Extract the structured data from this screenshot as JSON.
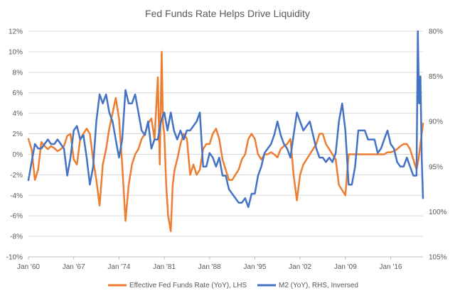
{
  "chart_data": {
    "type": "line",
    "title": "Fed Funds Rate Helps Drive Liquidity",
    "legend_position": "bottom",
    "grid": "horizontal",
    "x_ticks": [
      "Jan '60",
      "Jan '67",
      "Jan '74",
      "Jan '81",
      "Jan '88",
      "Jan '95",
      "Jan '02",
      "Jan '09",
      "Jan '16"
    ],
    "x_range": [
      1960,
      2021
    ],
    "y_left": {
      "range": [
        -10,
        12
      ],
      "ticks": [
        -10,
        -8,
        -6,
        -4,
        -2,
        0,
        2,
        4,
        6,
        8,
        10,
        12
      ],
      "tick_labels": [
        "-10%",
        "-8%",
        "-6%",
        "-4%",
        "-2%",
        "0%",
        "2%",
        "4%",
        "6%",
        "8%",
        "10%",
        "12%"
      ]
    },
    "y_right": {
      "range": [
        80,
        105
      ],
      "reversed": true,
      "ticks": [
        80,
        85,
        90,
        95,
        100,
        105
      ],
      "tick_labels": [
        "80%",
        "85%",
        "90%",
        "95%",
        "100%",
        "105%"
      ]
    },
    "series": [
      {
        "name": "Effective Fed Funds Rate (YoY), LHS",
        "color": "#ED7D31",
        "axis": "left",
        "x": [
          1960.0,
          1960.5,
          1961.0,
          1961.5,
          1962.0,
          1962.5,
          1963.0,
          1963.5,
          1964.0,
          1964.5,
          1965.0,
          1965.5,
          1966.0,
          1966.5,
          1967.0,
          1967.5,
          1968.0,
          1968.5,
          1969.0,
          1969.5,
          1970.0,
          1970.5,
          1971.0,
          1971.5,
          1972.0,
          1972.5,
          1973.0,
          1973.5,
          1974.0,
          1974.5,
          1975.0,
          1975.5,
          1976.0,
          1976.5,
          1977.0,
          1977.5,
          1978.0,
          1978.5,
          1979.0,
          1979.5,
          1980.0,
          1980.3,
          1980.6,
          1980.8,
          1981.0,
          1981.3,
          1981.6,
          1982.0,
          1982.3,
          1982.6,
          1983.0,
          1983.5,
          1984.0,
          1984.5,
          1985.0,
          1985.5,
          1986.0,
          1986.5,
          1987.0,
          1987.5,
          1988.0,
          1988.5,
          1989.0,
          1989.5,
          1990.0,
          1990.5,
          1991.0,
          1991.5,
          1992.0,
          1992.5,
          1993.0,
          1993.5,
          1994.0,
          1994.5,
          1995.0,
          1995.5,
          1996.0,
          1996.5,
          1997.0,
          1997.5,
          1998.0,
          1998.5,
          1999.0,
          1999.5,
          2000.0,
          2000.5,
          2001.0,
          2001.5,
          2002.0,
          2002.5,
          2003.0,
          2003.5,
          2004.0,
          2004.5,
          2005.0,
          2005.5,
          2006.0,
          2006.5,
          2007.0,
          2007.5,
          2008.0,
          2008.5,
          2009.0,
          2009.5,
          2010.0,
          2010.5,
          2011.0,
          2011.5,
          2012.0,
          2012.5,
          2013.0,
          2013.5,
          2014.0,
          2014.5,
          2015.0,
          2015.5,
          2016.0,
          2016.5,
          2017.0,
          2017.5,
          2018.0,
          2018.5,
          2019.0,
          2019.5,
          2020.0,
          2020.3,
          2020.6,
          2021.0
        ],
        "y": [
          1.5,
          0.5,
          -2.5,
          -1.5,
          1.2,
          0.8,
          0.5,
          0.8,
          0.6,
          0.3,
          0.5,
          0.8,
          1.8,
          2.0,
          -0.5,
          -1.0,
          1.5,
          2.0,
          2.5,
          2.0,
          -0.5,
          -2.5,
          -5.0,
          -1.0,
          0.5,
          2.5,
          4.0,
          5.5,
          3.5,
          -1.0,
          -6.5,
          -3.0,
          -1.0,
          0.0,
          0.5,
          1.5,
          2.0,
          3.0,
          3.5,
          1.5,
          7.5,
          -1.0,
          10.0,
          3.0,
          2.0,
          -3.0,
          -6.0,
          -7.5,
          -3.0,
          -1.5,
          -0.5,
          1.0,
          2.0,
          1.5,
          -2.0,
          -1.0,
          -2.0,
          -1.5,
          0.5,
          1.0,
          1.0,
          2.0,
          2.5,
          1.5,
          -0.5,
          -1.5,
          -2.5,
          -2.5,
          -2.0,
          -1.5,
          -0.5,
          0.0,
          1.5,
          2.0,
          1.5,
          0.0,
          -0.5,
          0.0,
          0.0,
          0.2,
          0.0,
          -0.3,
          0.5,
          0.8,
          1.0,
          1.5,
          -2.0,
          -4.5,
          -2.0,
          -1.0,
          -0.5,
          0.0,
          0.5,
          1.0,
          2.0,
          2.0,
          1.0,
          0.5,
          0.0,
          -0.5,
          -3.0,
          -3.5,
          -4.0,
          0.0,
          0.0,
          0.0,
          0.0,
          0.0,
          0.0,
          0.0,
          0.0,
          0.0,
          0.0,
          0.0,
          0.0,
          0.2,
          0.2,
          0.3,
          0.5,
          0.8,
          1.0,
          1.0,
          0.5,
          -0.5,
          -1.5,
          -0.5,
          1.0,
          3.0
        ]
      },
      {
        "name": "M2 (YoY), RHS, Inversed",
        "color": "#4472C4",
        "axis": "right",
        "x": [
          1960.0,
          1960.5,
          1961.0,
          1961.5,
          1962.0,
          1962.5,
          1963.0,
          1963.5,
          1964.0,
          1964.5,
          1965.0,
          1965.5,
          1966.0,
          1966.5,
          1967.0,
          1967.5,
          1968.0,
          1968.5,
          1969.0,
          1969.5,
          1970.0,
          1970.5,
          1971.0,
          1971.5,
          1972.0,
          1972.5,
          1973.0,
          1973.5,
          1974.0,
          1974.5,
          1975.0,
          1975.5,
          1976.0,
          1976.5,
          1977.0,
          1977.5,
          1978.0,
          1978.5,
          1979.0,
          1979.5,
          1980.0,
          1980.5,
          1981.0,
          1981.5,
          1982.0,
          1982.5,
          1983.0,
          1983.5,
          1984.0,
          1984.5,
          1985.0,
          1985.5,
          1986.0,
          1986.5,
          1987.0,
          1987.5,
          1988.0,
          1988.5,
          1989.0,
          1989.5,
          1990.0,
          1990.5,
          1991.0,
          1991.5,
          1992.0,
          1992.5,
          1993.0,
          1993.5,
          1994.0,
          1994.5,
          1995.0,
          1995.5,
          1996.0,
          1996.5,
          1997.0,
          1997.5,
          1998.0,
          1998.5,
          1999.0,
          1999.5,
          2000.0,
          2000.5,
          2001.0,
          2001.5,
          2002.0,
          2002.5,
          2003.0,
          2003.5,
          2004.0,
          2004.5,
          2005.0,
          2005.5,
          2006.0,
          2006.5,
          2007.0,
          2007.5,
          2008.0,
          2008.5,
          2009.0,
          2009.5,
          2010.0,
          2010.5,
          2011.0,
          2011.5,
          2012.0,
          2012.5,
          2013.0,
          2013.5,
          2014.0,
          2014.5,
          2015.0,
          2015.5,
          2016.0,
          2016.5,
          2017.0,
          2017.5,
          2018.0,
          2018.5,
          2019.0,
          2019.5,
          2020.0,
          2020.2,
          2020.4,
          2020.6,
          2020.8,
          2021.0
        ],
        "y": [
          96.5,
          94.5,
          92.5,
          93.0,
          93.0,
          92.5,
          92.0,
          92.5,
          92.5,
          92.0,
          92.5,
          93.0,
          96.0,
          94.0,
          91.0,
          90.5,
          92.0,
          91.5,
          94.0,
          97.0,
          95.0,
          90.0,
          87.0,
          88.0,
          87.0,
          89.0,
          90.0,
          92.0,
          94.0,
          92.0,
          86.5,
          88.0,
          88.0,
          87.0,
          89.0,
          91.0,
          91.5,
          90.0,
          93.0,
          92.0,
          92.0,
          90.0,
          89.0,
          91.0,
          89.0,
          91.0,
          92.0,
          91.0,
          92.0,
          91.0,
          91.0,
          90.5,
          90.0,
          89.0,
          95.0,
          95.0,
          93.5,
          94.0,
          95.0,
          94.0,
          96.0,
          96.0,
          97.5,
          98.0,
          98.5,
          99.0,
          99.0,
          98.5,
          99.5,
          98.0,
          98.0,
          96.0,
          95.0,
          93.5,
          93.0,
          92.5,
          91.5,
          90.0,
          91.5,
          92.5,
          93.0,
          94.0,
          91.5,
          89.0,
          90.0,
          91.0,
          90.5,
          90.0,
          91.5,
          93.0,
          94.0,
          94.0,
          94.5,
          94.0,
          94.5,
          93.5,
          90.0,
          88.0,
          91.0,
          97.0,
          97.0,
          95.0,
          91.0,
          91.0,
          91.0,
          92.0,
          92.0,
          92.0,
          93.5,
          93.0,
          92.0,
          91.0,
          92.5,
          93.0,
          94.5,
          95.0,
          95.0,
          94.0,
          95.0,
          96.0,
          96.0,
          80.0,
          88.0,
          85.0,
          94.0,
          98.5
        ]
      }
    ]
  }
}
